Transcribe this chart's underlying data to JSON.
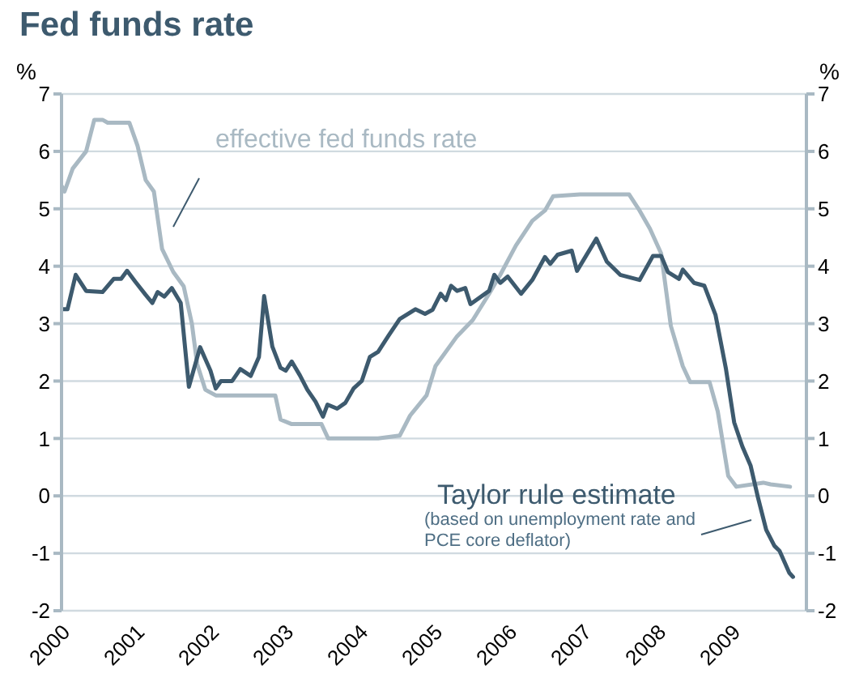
{
  "chart_data": {
    "type": "line",
    "title": "Fed funds rate",
    "ylabel": "%",
    "y2label": "%",
    "xlim": [
      2000,
      2010
    ],
    "xticks": [
      2000,
      2001,
      2002,
      2003,
      2004,
      2005,
      2006,
      2007,
      2008,
      2009
    ],
    "ylim": [
      -2,
      7
    ],
    "yticks": [
      -2,
      -1,
      0,
      1,
      2,
      3,
      4,
      5,
      6,
      7
    ],
    "y2lim": [
      -2,
      7
    ],
    "y2ticks": [
      -2,
      -1,
      0,
      1,
      2,
      3,
      4,
      5,
      6,
      7
    ],
    "grid": "y",
    "legend": false,
    "marker": "none",
    "line_style": "solid",
    "annotations": [
      "(based on unemployment rate and PCE core deflator)"
    ],
    "series": [
      {
        "name": "effective fed funds rate",
        "color": "#a9b9c3",
        "x": [
          2000.0,
          2000.04,
          2000.15,
          2000.33,
          2000.44,
          2000.55,
          2000.62,
          2000.91,
          2001.02,
          2001.13,
          2001.24,
          2001.35,
          2001.5,
          2001.64,
          2001.75,
          2001.82,
          2001.93,
          2002.07,
          2002.43,
          2002.87,
          2002.94,
          2003.09,
          2003.49,
          2003.58,
          2003.96,
          2004.25,
          2004.54,
          2004.68,
          2004.9,
          2005.02,
          2005.31,
          2005.52,
          2005.74,
          2005.89,
          2006.1,
          2006.32,
          2006.49,
          2006.6,
          2006.96,
          2007.62,
          2007.76,
          2007.9,
          2008.05,
          2008.18,
          2008.34,
          2008.44,
          2008.7,
          2008.81,
          2008.95,
          2009.06,
          2009.42,
          2009.52,
          2009.78
        ],
        "values": [
          5.4,
          5.3,
          5.7,
          6.0,
          6.55,
          6.55,
          6.5,
          6.5,
          6.1,
          5.5,
          5.3,
          4.3,
          3.9,
          3.65,
          3.0,
          2.3,
          1.85,
          1.75,
          1.75,
          1.75,
          1.33,
          1.25,
          1.25,
          1.0,
          1.0,
          1.0,
          1.05,
          1.4,
          1.75,
          2.26,
          2.78,
          3.06,
          3.52,
          3.85,
          4.36,
          4.79,
          4.97,
          5.22,
          5.25,
          5.25,
          4.97,
          4.65,
          4.22,
          2.96,
          2.26,
          1.98,
          1.98,
          1.47,
          0.35,
          0.16,
          0.23,
          0.2,
          0.16
        ]
      },
      {
        "name": "Taylor rule estimate",
        "color": "#3d5a6e",
        "x": [
          2000.0,
          2000.08,
          2000.19,
          2000.33,
          2000.55,
          2000.7,
          2000.8,
          2000.88,
          2000.99,
          2001.13,
          2001.22,
          2001.29,
          2001.38,
          2001.48,
          2001.6,
          2001.71,
          2001.86,
          2002.0,
          2002.07,
          2002.14,
          2002.29,
          2002.4,
          2002.54,
          2002.65,
          2002.72,
          2002.83,
          2002.94,
          2003.01,
          2003.09,
          2003.2,
          2003.3,
          2003.41,
          2003.51,
          2003.57,
          2003.7,
          2003.81,
          2003.92,
          2004.03,
          2004.14,
          2004.25,
          2004.39,
          2004.54,
          2004.75,
          2004.88,
          2004.98,
          2005.09,
          2005.16,
          2005.23,
          2005.31,
          2005.42,
          2005.49,
          2005.74,
          2005.81,
          2005.89,
          2005.99,
          2006.17,
          2006.32,
          2006.49,
          2006.56,
          2006.66,
          2006.85,
          2006.92,
          2007.18,
          2007.32,
          2007.5,
          2007.76,
          2007.94,
          2008.05,
          2008.14,
          2008.29,
          2008.34,
          2008.49,
          2008.63,
          2008.78,
          2008.92,
          2009.03,
          2009.14,
          2009.25,
          2009.35,
          2009.46,
          2009.57,
          2009.64,
          2009.77,
          2009.82
        ],
        "values": [
          3.25,
          3.25,
          3.85,
          3.57,
          3.55,
          3.78,
          3.78,
          3.92,
          3.73,
          3.5,
          3.36,
          3.55,
          3.47,
          3.62,
          3.36,
          1.9,
          2.59,
          2.18,
          1.87,
          2.0,
          2.0,
          2.21,
          2.09,
          2.42,
          3.48,
          2.6,
          2.23,
          2.18,
          2.34,
          2.1,
          1.85,
          1.64,
          1.38,
          1.59,
          1.52,
          1.62,
          1.87,
          2.0,
          2.42,
          2.51,
          2.79,
          3.08,
          3.25,
          3.17,
          3.24,
          3.52,
          3.41,
          3.66,
          3.57,
          3.62,
          3.34,
          3.57,
          3.85,
          3.71,
          3.82,
          3.52,
          3.76,
          4.16,
          4.04,
          4.2,
          4.27,
          3.92,
          4.48,
          4.08,
          3.85,
          3.76,
          4.18,
          4.18,
          3.9,
          3.78,
          3.94,
          3.71,
          3.66,
          3.15,
          2.21,
          1.28,
          0.86,
          0.53,
          -0.03,
          -0.59,
          -0.87,
          -0.96,
          -1.34,
          -1.41
        ]
      }
    ]
  }
}
